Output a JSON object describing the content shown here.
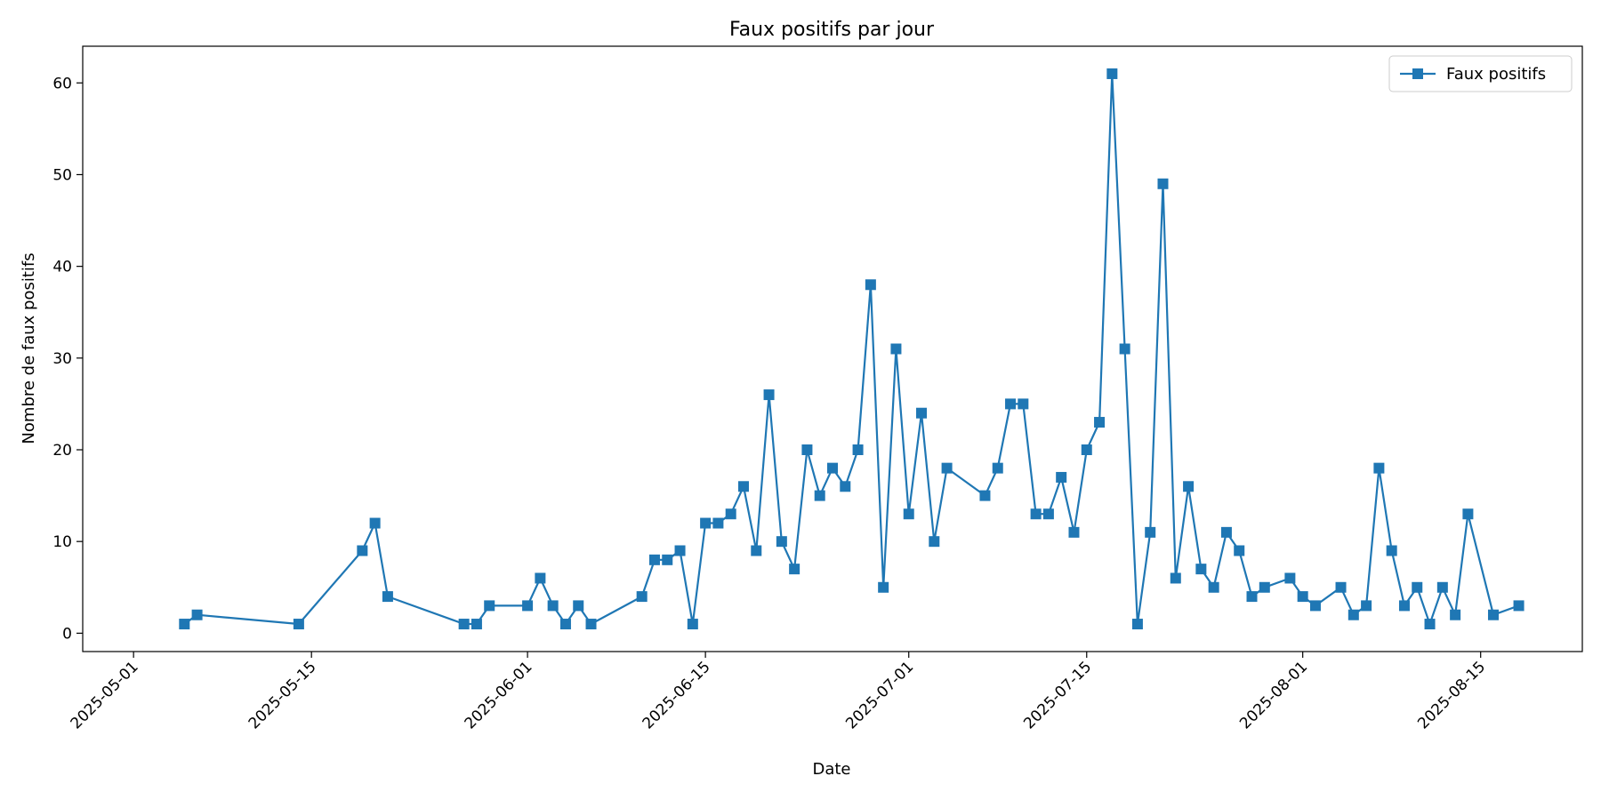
{
  "chart_data": {
    "type": "line",
    "title": "Faux positifs par jour",
    "xlabel": "Date",
    "ylabel": "Nombre de faux positifs",
    "xlim": [
      "2025-04-27",
      "2025-08-23"
    ],
    "ylim": [
      -2,
      64
    ],
    "x_ticks": [
      "2025-05-01",
      "2025-05-15",
      "2025-06-01",
      "2025-06-15",
      "2025-07-01",
      "2025-07-15",
      "2025-08-01",
      "2025-08-15"
    ],
    "y_ticks": [
      0,
      10,
      20,
      30,
      40,
      50,
      60
    ],
    "grid": false,
    "legend_position": "top-right",
    "color": "#1f77b4",
    "marker": "square",
    "series": [
      {
        "name": "Faux positifs",
        "points": [
          [
            "2025-05-05",
            1
          ],
          [
            "2025-05-06",
            2
          ],
          [
            "2025-05-14",
            1
          ],
          [
            "2025-05-19",
            9
          ],
          [
            "2025-05-20",
            12
          ],
          [
            "2025-05-21",
            4
          ],
          [
            "2025-05-27",
            1
          ],
          [
            "2025-05-28",
            1
          ],
          [
            "2025-05-29",
            3
          ],
          [
            "2025-06-01",
            3
          ],
          [
            "2025-06-02",
            6
          ],
          [
            "2025-06-03",
            3
          ],
          [
            "2025-06-04",
            1
          ],
          [
            "2025-06-05",
            3
          ],
          [
            "2025-06-06",
            1
          ],
          [
            "2025-06-10",
            4
          ],
          [
            "2025-06-11",
            8
          ],
          [
            "2025-06-12",
            8
          ],
          [
            "2025-06-13",
            9
          ],
          [
            "2025-06-14",
            1
          ],
          [
            "2025-06-15",
            12
          ],
          [
            "2025-06-16",
            12
          ],
          [
            "2025-06-17",
            13
          ],
          [
            "2025-06-18",
            16
          ],
          [
            "2025-06-19",
            9
          ],
          [
            "2025-06-20",
            26
          ],
          [
            "2025-06-21",
            10
          ],
          [
            "2025-06-22",
            7
          ],
          [
            "2025-06-23",
            20
          ],
          [
            "2025-06-24",
            15
          ],
          [
            "2025-06-25",
            18
          ],
          [
            "2025-06-26",
            16
          ],
          [
            "2025-06-27",
            20
          ],
          [
            "2025-06-28",
            38
          ],
          [
            "2025-06-29",
            5
          ],
          [
            "2025-06-30",
            31
          ],
          [
            "2025-07-01",
            13
          ],
          [
            "2025-07-02",
            24
          ],
          [
            "2025-07-03",
            10
          ],
          [
            "2025-07-04",
            18
          ],
          [
            "2025-07-07",
            15
          ],
          [
            "2025-07-08",
            18
          ],
          [
            "2025-07-09",
            25
          ],
          [
            "2025-07-10",
            25
          ],
          [
            "2025-07-11",
            13
          ],
          [
            "2025-07-12",
            13
          ],
          [
            "2025-07-13",
            17
          ],
          [
            "2025-07-14",
            11
          ],
          [
            "2025-07-15",
            20
          ],
          [
            "2025-07-16",
            23
          ],
          [
            "2025-07-17",
            61
          ],
          [
            "2025-07-18",
            31
          ],
          [
            "2025-07-19",
            1
          ],
          [
            "2025-07-20",
            11
          ],
          [
            "2025-07-21",
            49
          ],
          [
            "2025-07-22",
            6
          ],
          [
            "2025-07-23",
            16
          ],
          [
            "2025-07-24",
            7
          ],
          [
            "2025-07-25",
            5
          ],
          [
            "2025-07-26",
            11
          ],
          [
            "2025-07-27",
            9
          ],
          [
            "2025-07-28",
            4
          ],
          [
            "2025-07-29",
            5
          ],
          [
            "2025-07-31",
            6
          ],
          [
            "2025-08-01",
            4
          ],
          [
            "2025-08-02",
            3
          ],
          [
            "2025-08-04",
            5
          ],
          [
            "2025-08-05",
            2
          ],
          [
            "2025-08-06",
            3
          ],
          [
            "2025-08-07",
            18
          ],
          [
            "2025-08-08",
            9
          ],
          [
            "2025-08-09",
            3
          ],
          [
            "2025-08-10",
            5
          ],
          [
            "2025-08-11",
            1
          ],
          [
            "2025-08-12",
            5
          ],
          [
            "2025-08-13",
            2
          ],
          [
            "2025-08-14",
            13
          ],
          [
            "2025-08-16",
            2
          ],
          [
            "2025-08-18",
            3
          ]
        ]
      }
    ]
  }
}
